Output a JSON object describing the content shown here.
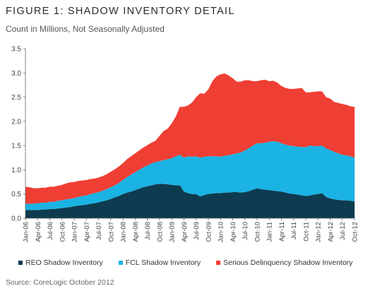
{
  "chart_data": {
    "type": "area",
    "stacked": true,
    "title": "FIGURE 1: SHADOW INVENTORY DETAIL",
    "subtitle": "Count in Millions, Not Seasonally Adjusted",
    "xlabel": "",
    "ylabel": "",
    "ylim": [
      0,
      3.5
    ],
    "yticks": [
      "0.0",
      "0.5",
      "1.0",
      "1.5",
      "2.0",
      "2.5",
      "3.0",
      "3.5"
    ],
    "grid": false,
    "legend_position": "bottom",
    "xtick_labels": [
      "Jan-06",
      "Apr-06",
      "Jul-06",
      "Oct-06",
      "Jan-07",
      "Apr-07",
      "Jul-07",
      "Oct-07",
      "Jan-08",
      "Apr-08",
      "Jul-08",
      "Oct-08",
      "Jan-09",
      "Apr-09",
      "Jul-09",
      "Oct-09",
      "Jan-10",
      "Apr-10",
      "Jul-10",
      "Oct-10",
      "Jan-11",
      "Apr-11",
      "Jul-11",
      "Oct-11",
      "Jan-12",
      "Apr-12",
      "Jul-12",
      "Oct-12"
    ],
    "x": [
      "Jan-06",
      "Feb-06",
      "Mar-06",
      "Apr-06",
      "May-06",
      "Jun-06",
      "Jul-06",
      "Aug-06",
      "Sep-06",
      "Oct-06",
      "Nov-06",
      "Dec-06",
      "Jan-07",
      "Feb-07",
      "Mar-07",
      "Apr-07",
      "May-07",
      "Jun-07",
      "Jul-07",
      "Aug-07",
      "Sep-07",
      "Oct-07",
      "Nov-07",
      "Dec-07",
      "Jan-08",
      "Feb-08",
      "Mar-08",
      "Apr-08",
      "May-08",
      "Jun-08",
      "Jul-08",
      "Aug-08",
      "Sep-08",
      "Oct-08",
      "Nov-08",
      "Dec-08",
      "Jan-09",
      "Feb-09",
      "Mar-09",
      "Apr-09",
      "May-09",
      "Jun-09",
      "Jul-09",
      "Aug-09",
      "Sep-09",
      "Oct-09",
      "Nov-09",
      "Dec-09",
      "Jan-10",
      "Feb-10",
      "Mar-10",
      "Apr-10",
      "May-10",
      "Jun-10",
      "Jul-10",
      "Aug-10",
      "Sep-10",
      "Oct-10",
      "Nov-10",
      "Dec-10",
      "Jan-11",
      "Feb-11",
      "Mar-11",
      "Apr-11",
      "May-11",
      "Jun-11",
      "Jul-11",
      "Aug-11",
      "Sep-11",
      "Oct-11",
      "Nov-11",
      "Dec-11",
      "Jan-12",
      "Feb-12",
      "Mar-12",
      "Apr-12",
      "May-12",
      "Jun-12",
      "Jul-12",
      "Aug-12",
      "Sep-12",
      "Oct-12"
    ],
    "series": [
      {
        "name": "REO Shadow Inventory",
        "color": "#0e3b4f",
        "values": [
          0.17,
          0.17,
          0.17,
          0.17,
          0.18,
          0.18,
          0.19,
          0.19,
          0.2,
          0.21,
          0.22,
          0.23,
          0.25,
          0.26,
          0.27,
          0.28,
          0.3,
          0.31,
          0.33,
          0.35,
          0.37,
          0.4,
          0.43,
          0.46,
          0.5,
          0.53,
          0.55,
          0.58,
          0.61,
          0.64,
          0.66,
          0.68,
          0.7,
          0.71,
          0.71,
          0.7,
          0.69,
          0.68,
          0.68,
          0.55,
          0.52,
          0.5,
          0.5,
          0.45,
          0.48,
          0.5,
          0.51,
          0.52,
          0.52,
          0.53,
          0.53,
          0.54,
          0.54,
          0.53,
          0.54,
          0.56,
          0.59,
          0.62,
          0.6,
          0.59,
          0.58,
          0.57,
          0.56,
          0.55,
          0.53,
          0.51,
          0.5,
          0.49,
          0.47,
          0.46,
          0.47,
          0.49,
          0.5,
          0.52,
          0.44,
          0.41,
          0.39,
          0.38,
          0.37,
          0.37,
          0.36,
          0.35
        ]
      },
      {
        "name": "FCL Shadow Inventory",
        "color": "#1bb3e3",
        "values": [
          0.13,
          0.13,
          0.13,
          0.14,
          0.14,
          0.14,
          0.15,
          0.15,
          0.16,
          0.16,
          0.17,
          0.17,
          0.17,
          0.18,
          0.19,
          0.19,
          0.2,
          0.21,
          0.21,
          0.22,
          0.23,
          0.24,
          0.25,
          0.27,
          0.29,
          0.32,
          0.35,
          0.37,
          0.39,
          0.41,
          0.43,
          0.45,
          0.46,
          0.47,
          0.49,
          0.52,
          0.55,
          0.6,
          0.63,
          0.7,
          0.76,
          0.77,
          0.78,
          0.8,
          0.79,
          0.78,
          0.77,
          0.76,
          0.75,
          0.76,
          0.77,
          0.78,
          0.8,
          0.83,
          0.86,
          0.89,
          0.91,
          0.93,
          0.95,
          0.97,
          1.0,
          1.02,
          1.02,
          1.0,
          0.99,
          0.99,
          0.99,
          0.99,
          1.0,
          1.01,
          1.03,
          1.0,
          0.99,
          0.98,
          1.0,
          1.0,
          0.98,
          0.96,
          0.94,
          0.93,
          0.92,
          0.9
        ]
      },
      {
        "name": "Serious Delinquency Shadow Inventory",
        "color": "#ef3e33",
        "values": [
          0.35,
          0.34,
          0.32,
          0.31,
          0.31,
          0.31,
          0.31,
          0.31,
          0.31,
          0.32,
          0.33,
          0.34,
          0.33,
          0.33,
          0.32,
          0.32,
          0.31,
          0.3,
          0.3,
          0.3,
          0.31,
          0.32,
          0.33,
          0.34,
          0.35,
          0.37,
          0.38,
          0.39,
          0.4,
          0.41,
          0.42,
          0.43,
          0.44,
          0.52,
          0.6,
          0.63,
          0.72,
          0.82,
          0.99,
          1.05,
          1.05,
          1.12,
          1.22,
          1.33,
          1.3,
          1.38,
          1.55,
          1.65,
          1.7,
          1.7,
          1.65,
          1.57,
          1.48,
          1.46,
          1.45,
          1.4,
          1.33,
          1.28,
          1.3,
          1.3,
          1.25,
          1.25,
          1.22,
          1.18,
          1.17,
          1.17,
          1.18,
          1.2,
          1.22,
          1.13,
          1.1,
          1.12,
          1.13,
          1.12,
          1.06,
          1.06,
          1.03,
          1.04,
          1.05,
          1.04,
          1.03,
          1.05
        ]
      }
    ]
  },
  "source_text": "Source: CoreLogic October 2012"
}
